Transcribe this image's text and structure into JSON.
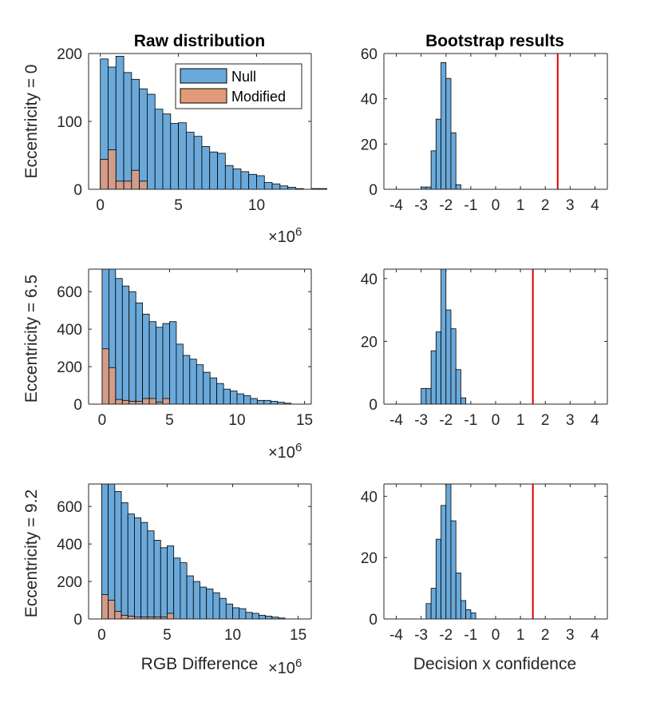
{
  "colors": {
    "null_fill": "#6aa9da",
    "modified_fill": "#e39a7a",
    "edge": "#000000",
    "threshold": "#e00000"
  },
  "chart_data": [
    {
      "type": "bar",
      "title": "Raw distribution",
      "xlabel": "",
      "ylabel": "Eccentricity = 0",
      "xlim": [
        -0.75,
        13.5
      ],
      "ylim": [
        0,
        200
      ],
      "xticks": [
        "0",
        "5",
        "10"
      ],
      "yticks": [
        "0",
        "100",
        "200"
      ],
      "x_exponent_label": "×10",
      "x_exponent_power": "6",
      "legend": {
        "position": "top-right",
        "entries": [
          "Null",
          "Modified"
        ]
      },
      "series": [
        {
          "name": "Null",
          "bin_start": 0,
          "bin_width": 0.5,
          "values": [
            192,
            180,
            196,
            172,
            162,
            148,
            140,
            118,
            111,
            97,
            98,
            84,
            78,
            63,
            55,
            53,
            35,
            30,
            26,
            22,
            20,
            10,
            8,
            5,
            3,
            1,
            0,
            1,
            1
          ]
        },
        {
          "name": "Modified",
          "bin_start": 0,
          "bin_width": 0.5,
          "values": [
            44,
            58,
            12,
            12,
            28,
            12
          ]
        }
      ]
    },
    {
      "type": "bar",
      "title": "Bootstrap results",
      "xlabel": "",
      "xlim": [
        -4.5,
        4.5
      ],
      "ylim": [
        0,
        60
      ],
      "xticks": [
        "-4",
        "-3",
        "-2",
        "-1",
        "0",
        "1",
        "2",
        "3",
        "4"
      ],
      "yticks": [
        "0",
        "20",
        "40",
        "60"
      ],
      "threshold": 2.5,
      "series": [
        {
          "bin_start": -3.2,
          "bin_width": 0.2,
          "values": [
            0,
            1,
            1,
            17,
            31,
            56,
            49,
            25,
            2
          ]
        }
      ]
    },
    {
      "type": "bar",
      "xlabel": "",
      "ylabel": "Eccentricity = 6.5",
      "xlim": [
        -1.0,
        15.5
      ],
      "ylim": [
        0,
        720
      ],
      "xticks": [
        "0",
        "5",
        "10",
        "15"
      ],
      "yticks": [
        "0",
        "200",
        "400",
        "600"
      ],
      "x_exponent_label": "×10",
      "x_exponent_power": "6",
      "series": [
        {
          "name": "Null",
          "bin_start": 0,
          "bin_width": 0.5,
          "values": [
            720,
            720,
            670,
            630,
            600,
            540,
            480,
            440,
            410,
            430,
            440,
            320,
            260,
            240,
            210,
            170,
            140,
            110,
            80,
            70,
            55,
            45,
            30,
            20,
            20,
            15,
            10,
            5
          ]
        },
        {
          "name": "Modified",
          "bin_start": 0,
          "bin_width": 0.5,
          "values": [
            295,
            195,
            25,
            20,
            15,
            15,
            30,
            30,
            10,
            30
          ]
        }
      ]
    },
    {
      "type": "bar",
      "xlabel": "",
      "xlim": [
        -4.5,
        4.5
      ],
      "ylim": [
        0,
        43
      ],
      "xticks": [
        "-4",
        "-3",
        "-2",
        "-1",
        "0",
        "1",
        "2",
        "3",
        "4"
      ],
      "yticks": [
        "0",
        "20",
        "40"
      ],
      "threshold": 1.5,
      "series": [
        {
          "bin_start": -3.0,
          "bin_width": 0.2,
          "values": [
            5,
            5,
            17,
            23,
            43,
            30,
            24,
            11,
            2
          ]
        }
      ]
    },
    {
      "type": "bar",
      "xlabel": "RGB Difference",
      "ylabel": "Eccentricity = 9.2",
      "xlim": [
        -1.0,
        16.0
      ],
      "ylim": [
        0,
        720
      ],
      "xticks": [
        "0",
        "5",
        "10",
        "15"
      ],
      "yticks": [
        "0",
        "200",
        "400",
        "600"
      ],
      "x_exponent_label": "×10",
      "x_exponent_power": "6",
      "series": [
        {
          "name": "Null",
          "bin_start": 0,
          "bin_width": 0.5,
          "values": [
            720,
            720,
            680,
            620,
            560,
            540,
            515,
            470,
            420,
            380,
            390,
            325,
            300,
            230,
            200,
            170,
            160,
            140,
            110,
            80,
            60,
            55,
            35,
            30,
            20,
            15,
            10,
            5
          ]
        },
        {
          "name": "Modified",
          "bin_start": 0,
          "bin_width": 0.5,
          "values": [
            130,
            100,
            40,
            20,
            15,
            10,
            10,
            10,
            10,
            10,
            30
          ]
        }
      ]
    },
    {
      "type": "bar",
      "xlabel": "Decision x confidence",
      "xlim": [
        -4.5,
        4.5
      ],
      "ylim": [
        0,
        44
      ],
      "xticks": [
        "-4",
        "-3",
        "-2",
        "-1",
        "0",
        "1",
        "2",
        "3",
        "4"
      ],
      "yticks": [
        "0",
        "20",
        "40"
      ],
      "threshold": 1.5,
      "series": [
        {
          "bin_start": -2.8,
          "bin_width": 0.2,
          "values": [
            5,
            10,
            26,
            37,
            44,
            32,
            15,
            6,
            3,
            2
          ]
        }
      ]
    }
  ]
}
